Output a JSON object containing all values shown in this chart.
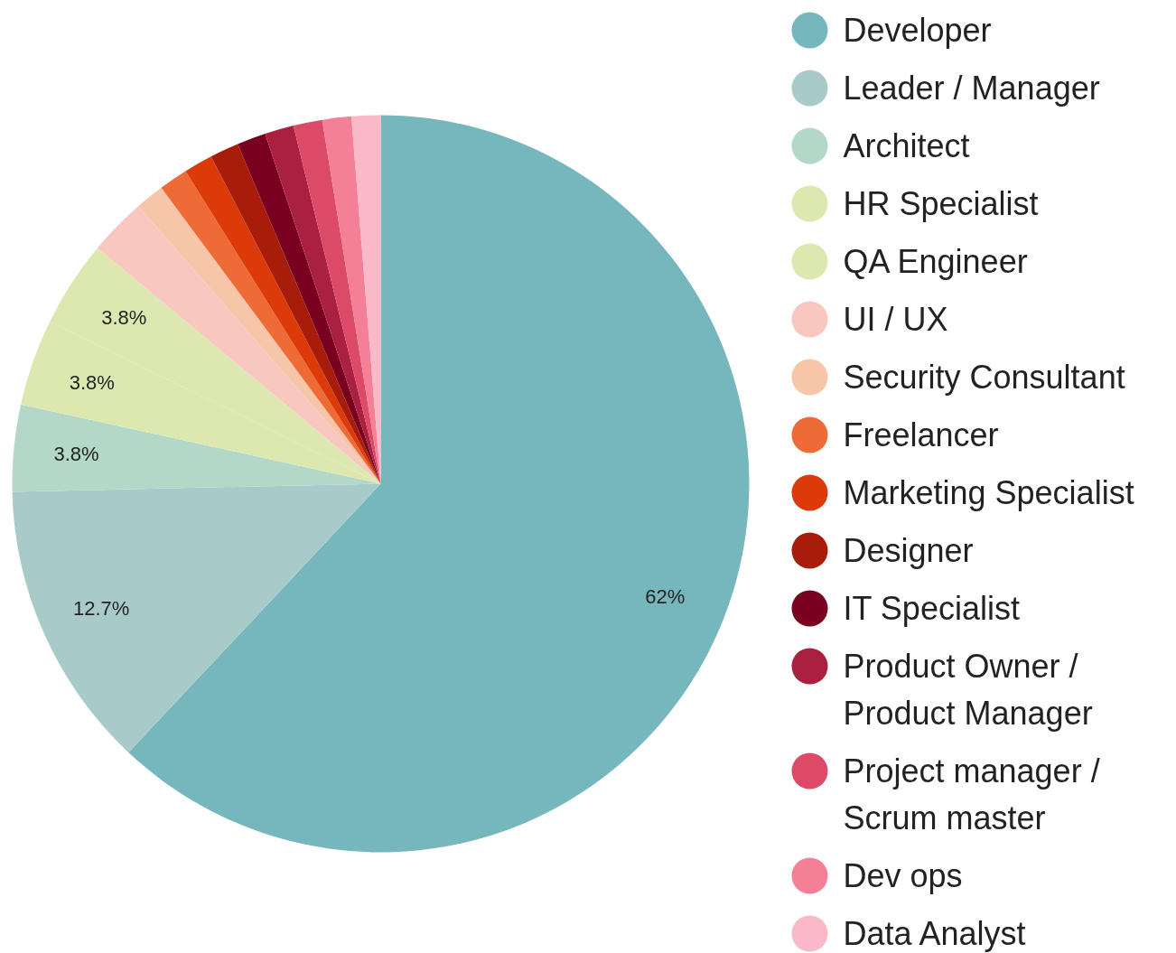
{
  "chart_data": {
    "type": "pie",
    "categories": [
      "Developer",
      "Leader / Manager",
      "Architect",
      "HR Specialist",
      "QA Engineer",
      "UI / UX",
      "Security Consultant",
      "Freelancer",
      "Marketing Specialist",
      "Designer",
      "IT Specialist",
      "Product Owner / Product Manager",
      "Project manager / Scrum master",
      "Dev ops",
      "Data Analyst"
    ],
    "values": [
      62.03,
      12.66,
      3.8,
      3.8,
      3.8,
      2.53,
      1.27,
      1.27,
      1.27,
      1.27,
      1.27,
      1.27,
      1.27,
      1.27,
      1.27
    ],
    "colors": [
      "#76b7bd",
      "#a8cbca",
      "#b4d8c8",
      "#dde8b0",
      "#dde8b0",
      "#f8c8c0",
      "#f7c5a8",
      "#ee6a36",
      "#dd3a0a",
      "#a81c0a",
      "#7a0020",
      "#aa2040",
      "#dd4a68",
      "#f48098",
      "#fbb8c8"
    ],
    "value_labels": [
      "62%",
      "12.7%",
      "3.8%",
      "3.8%",
      "3.8%",
      null,
      null,
      null,
      null,
      null,
      null,
      null,
      null,
      null,
      null
    ],
    "legend": "right"
  }
}
